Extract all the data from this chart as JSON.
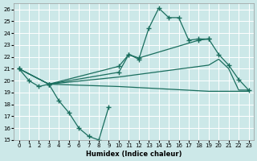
{
  "xlabel": "Humidex (Indice chaleur)",
  "bg_color": "#cce8e8",
  "grid_color": "#b0d0d0",
  "line_color": "#1a6e5e",
  "xlim": [
    -0.5,
    23.5
  ],
  "ylim": [
    15,
    26.5
  ],
  "xticks": [
    0,
    1,
    2,
    3,
    4,
    5,
    6,
    7,
    8,
    9,
    10,
    11,
    12,
    13,
    14,
    15,
    16,
    17,
    18,
    19,
    20,
    21,
    22,
    23
  ],
  "yticks": [
    15,
    16,
    17,
    18,
    19,
    20,
    21,
    22,
    23,
    24,
    25,
    26
  ],
  "line1": {
    "x": [
      0,
      1,
      2,
      3,
      4,
      5,
      6,
      7,
      8,
      9
    ],
    "y": [
      21.0,
      20.0,
      19.5,
      19.7,
      18.3,
      17.3,
      16.0,
      15.3,
      15.0,
      17.8
    ],
    "marker": true
  },
  "line2": {
    "x": [
      3,
      10,
      11,
      12,
      13,
      14,
      15,
      16,
      17,
      18,
      19
    ],
    "y": [
      19.7,
      20.7,
      22.2,
      21.8,
      24.4,
      26.1,
      25.3,
      25.3,
      23.4,
      23.5,
      23.5
    ],
    "marker": true
  },
  "line3": {
    "x": [
      0,
      3,
      10,
      11,
      12,
      18,
      19,
      20,
      21,
      22,
      23
    ],
    "y": [
      21.0,
      19.7,
      21.2,
      22.2,
      21.9,
      23.4,
      23.5,
      22.2,
      21.3,
      20.1,
      19.2
    ],
    "marker": true
  },
  "line4": {
    "x": [
      0,
      3,
      10,
      19,
      20,
      21,
      22,
      23
    ],
    "y": [
      21.0,
      19.7,
      20.3,
      21.3,
      21.8,
      21.0,
      19.2,
      19.2
    ],
    "marker": false
  },
  "line5": {
    "x": [
      0,
      3,
      10,
      19,
      22,
      23
    ],
    "y": [
      21.0,
      19.7,
      19.5,
      19.1,
      19.1,
      19.1
    ],
    "marker": false
  }
}
